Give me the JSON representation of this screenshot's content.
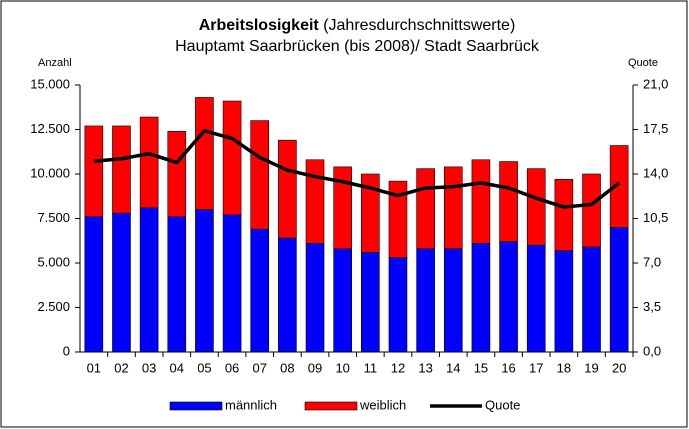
{
  "chart_data": {
    "type": "stacked_bar_line",
    "title": "Arbeitslosigkeit",
    "title_note": "(Jahresdurchschnittswerte)",
    "subtitle": "Hauptamt Saarbrücken (bis 2008)/ Stadt Saarbrück",
    "y_label": "Anzahl",
    "y2_label": "Quote",
    "categories": [
      "01",
      "02",
      "03",
      "04",
      "05",
      "06",
      "07",
      "08",
      "09",
      "10",
      "11",
      "12",
      "13",
      "14",
      "15",
      "16",
      "17",
      "18",
      "19",
      "20"
    ],
    "series": [
      {
        "name": "männlich",
        "color": "#0000ff",
        "kind": "bar",
        "values": [
          7600,
          7800,
          8100,
          7600,
          8000,
          7700,
          6900,
          6400,
          6100,
          5800,
          5600,
          5300,
          5800,
          5800,
          6100,
          6200,
          6000,
          5700,
          5900,
          7000
        ]
      },
      {
        "name": "weiblich",
        "color": "#ff0000",
        "kind": "bar",
        "values": [
          5100,
          4900,
          5100,
          4800,
          6300,
          6400,
          6100,
          5500,
          4700,
          4600,
          4400,
          4300,
          4500,
          4600,
          4700,
          4500,
          4300,
          4000,
          4100,
          4600
        ]
      },
      {
        "name": "Quote",
        "color": "#000000",
        "kind": "line",
        "axis": "y2",
        "values": [
          15.0,
          15.2,
          15.6,
          14.9,
          17.4,
          16.8,
          15.3,
          14.3,
          13.8,
          13.4,
          12.9,
          12.3,
          12.9,
          13.0,
          13.3,
          12.9,
          12.1,
          11.4,
          11.6,
          13.3
        ]
      }
    ],
    "ylim": [
      0,
      15000
    ],
    "yticks": [
      {
        "value": 0,
        "label": "0"
      },
      {
        "value": 2500,
        "label": "2.500"
      },
      {
        "value": 5000,
        "label": "5.000"
      },
      {
        "value": 7500,
        "label": "7.500"
      },
      {
        "value": 10000,
        "label": "10.000"
      },
      {
        "value": 12500,
        "label": "12.500"
      },
      {
        "value": 15000,
        "label": "15.000"
      }
    ],
    "y2lim": [
      0,
      21
    ],
    "y2ticks": [
      {
        "value": 0,
        "label": "0,0"
      },
      {
        "value": 3.5,
        "label": "3,5"
      },
      {
        "value": 7,
        "label": "7,0"
      },
      {
        "value": 10.5,
        "label": "10,5"
      },
      {
        "value": 14,
        "label": "14,0"
      },
      {
        "value": 17.5,
        "label": "17,5"
      },
      {
        "value": 21,
        "label": "21,0"
      }
    ],
    "grid": false,
    "legend": "bottom"
  }
}
